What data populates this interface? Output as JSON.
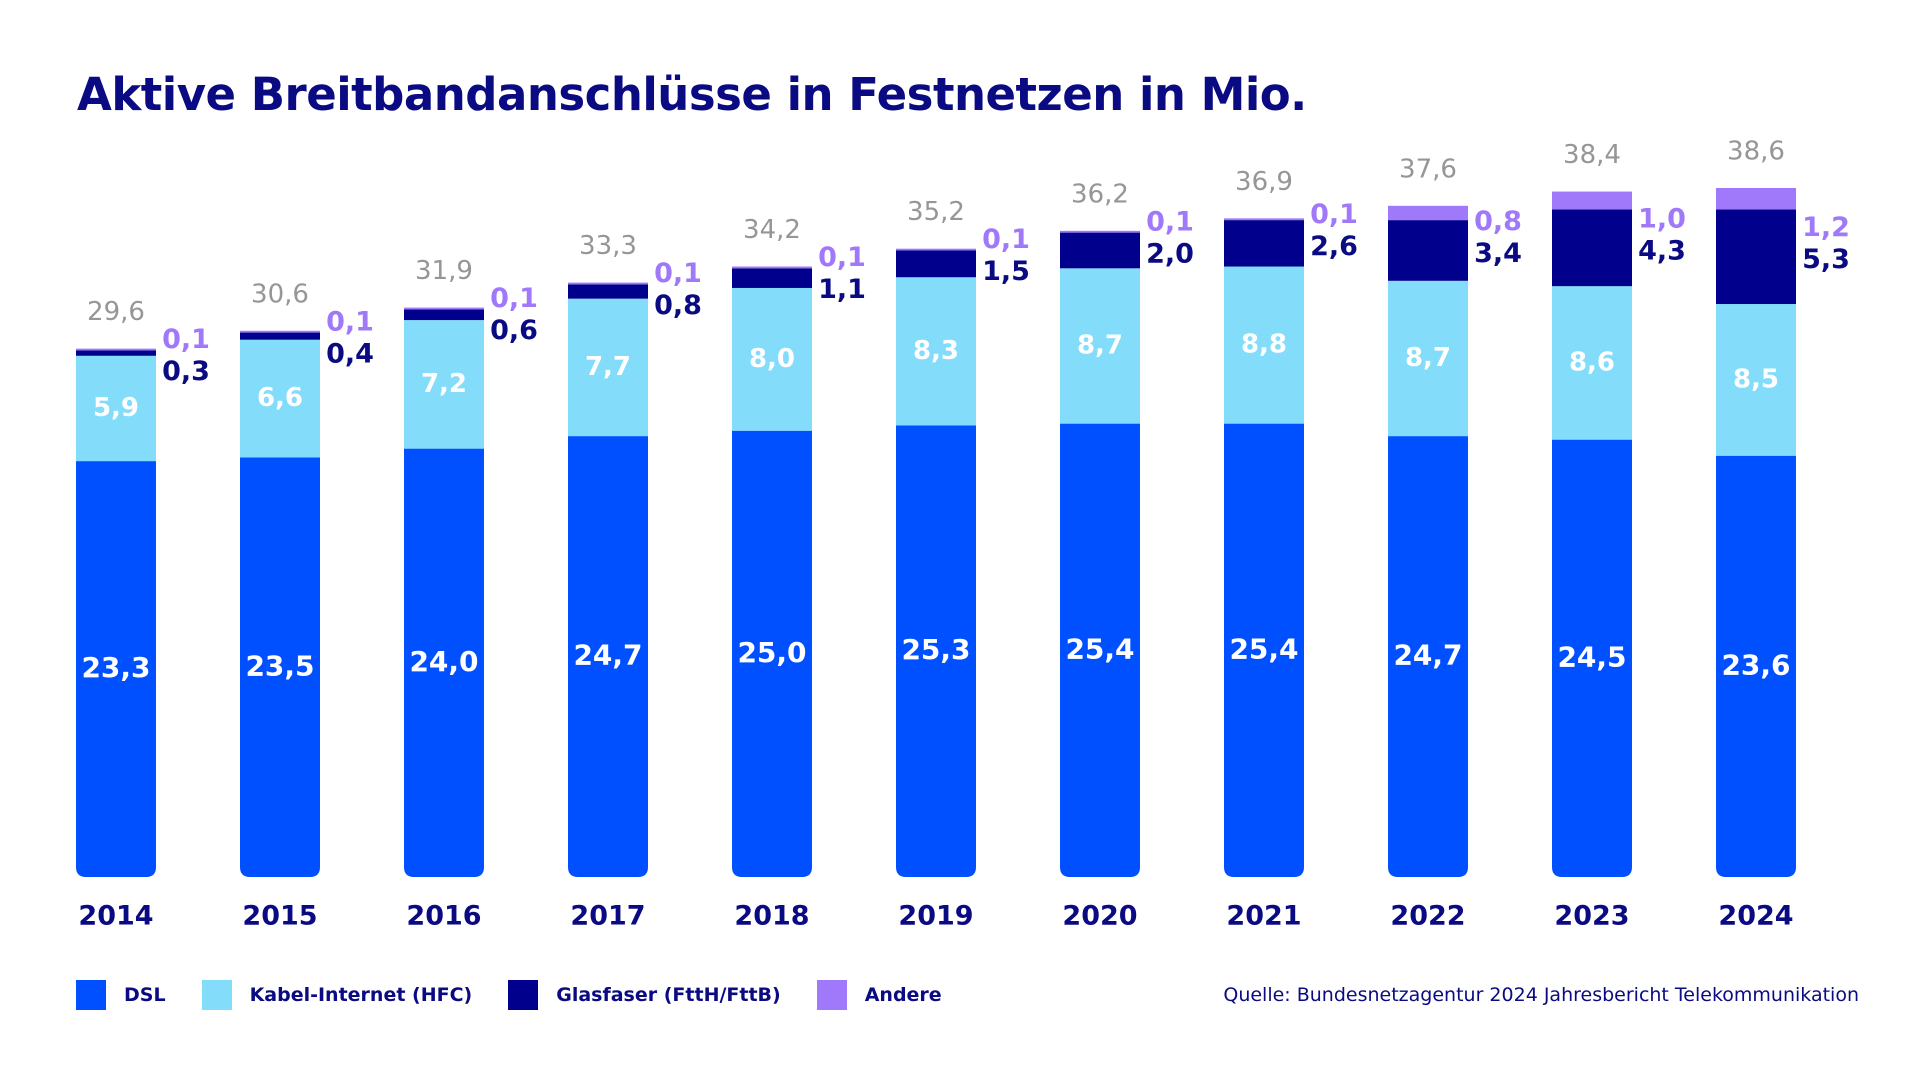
{
  "chart_data": {
    "type": "bar",
    "stacked": true,
    "title": "Aktive Breitbandanschlüsse in Festnetzen in Mio.",
    "xlabel": "",
    "ylabel": "",
    "ylim": [
      0,
      40
    ],
    "grid": false,
    "categories": [
      "2014",
      "2015",
      "2016",
      "2017",
      "2018",
      "2019",
      "2020",
      "2021",
      "2022",
      "2023",
      "2024"
    ],
    "series": [
      {
        "name": "DSL",
        "color": "#0050ff",
        "values": [
          23.3,
          23.5,
          24.0,
          24.7,
          25.0,
          25.3,
          25.4,
          25.4,
          24.7,
          24.5,
          23.6
        ]
      },
      {
        "name": "Kabel-Internet (HFC)",
        "color": "#82dcfa",
        "values": [
          5.9,
          6.6,
          7.2,
          7.7,
          8.0,
          8.3,
          8.7,
          8.8,
          8.7,
          8.6,
          8.5
        ]
      },
      {
        "name": "Glasfaser (FttH/FttB)",
        "color": "#00008c",
        "values": [
          0.3,
          0.4,
          0.6,
          0.8,
          1.1,
          1.5,
          2.0,
          2.6,
          3.4,
          4.3,
          5.3
        ]
      },
      {
        "name": "Andere",
        "color": "#a078fa",
        "values": [
          0.1,
          0.1,
          0.1,
          0.1,
          0.1,
          0.1,
          0.1,
          0.1,
          0.8,
          1.0,
          1.2
        ]
      }
    ],
    "value_labels": {
      "DSL": [
        "23,3",
        "23,5",
        "24,0",
        "24,7",
        "25,0",
        "25,3",
        "25,4",
        "25,4",
        "24,7",
        "24,5",
        "23,6"
      ],
      "Kabel-Internet (HFC)": [
        "5,9",
        "6,6",
        "7,2",
        "7,7",
        "8,0",
        "8,3",
        "8,7",
        "8,8",
        "8,7",
        "8,6",
        "8,5"
      ],
      "Glasfaser (FttH/FttB)": [
        "0,3",
        "0,4",
        "0,6",
        "0,8",
        "1,1",
        "1,5",
        "2,0",
        "2,6",
        "3,4",
        "4,3",
        "5,3"
      ],
      "Andere": [
        "0,1",
        "0,1",
        "0,1",
        "0,1",
        "0,1",
        "0,1",
        "0,1",
        "0,1",
        "0,8",
        "1,0",
        "1,2"
      ]
    },
    "totals": [
      29.6,
      30.6,
      31.9,
      33.3,
      34.2,
      35.2,
      36.2,
      36.9,
      37.6,
      38.4,
      38.6
    ],
    "total_labels": [
      "29,6",
      "30,6",
      "31,9",
      "33,3",
      "34,2",
      "35,2",
      "36,2",
      "36,9",
      "37,6",
      "38,4",
      "38,6"
    ],
    "legend_position": "bottom-left",
    "source": "Quelle: Bundesnetzagentur 2024 Jahresbericht Telekommunikation"
  },
  "colors": {
    "title": "#0a0a82",
    "total_label": "#969696",
    "dsl_label": "#ffffff",
    "hfc_label": "#ffffff",
    "fiber_label": "#0a0a82",
    "other_label": "#a078fa",
    "year_label": "#0a0a82"
  }
}
